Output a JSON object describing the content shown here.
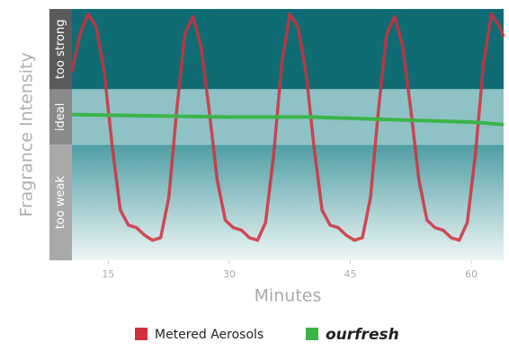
{
  "chart_data": {
    "type": "line",
    "ylabel": "Fragrance Intensity",
    "xlabel": "Minutes",
    "xlim": [
      10.5,
      64
    ],
    "ylim": [
      0,
      100
    ],
    "xticks": [
      15,
      30,
      45,
      60
    ],
    "bands": [
      {
        "label": "too strong",
        "from": 68,
        "to": 100,
        "color": "#0f6c74",
        "strip": "#5a5a5a"
      },
      {
        "label": "ideal",
        "from": 46,
        "to": 68,
        "color": "#8ec2c5",
        "strip": "#8a8a8a"
      },
      {
        "label": "too weak",
        "from": 0,
        "to": 46,
        "color": "#4f9ea4",
        "strip": "#a9a9a9"
      }
    ],
    "series": [
      {
        "name": "Metered Aerosols",
        "color": "#d12f3c",
        "x": [
          10.5,
          11.5,
          12.5,
          13.5,
          14.5,
          15.5,
          16.5,
          17.5,
          18.5,
          19.5,
          20.5,
          21.5,
          22.5,
          23.5,
          24.5,
          25.5,
          26.5,
          27.5,
          28.5,
          29.5,
          30.5,
          31.5,
          32.5,
          33.5,
          34.5,
          35.5,
          36.5,
          37.5,
          38.5,
          39.5,
          40.5,
          41.5,
          42.5,
          43.5,
          44.5,
          45.5,
          46.5,
          47.5,
          48.5,
          49.5,
          50.5,
          51.5,
          52.5,
          53.5,
          54.5,
          55.5,
          56.5,
          57.5,
          58.5,
          59.5,
          60.5,
          61.5,
          62.5,
          63.5,
          64
        ],
        "values": [
          75,
          90,
          98,
          93,
          75,
          45,
          20,
          14,
          13,
          10,
          8,
          9,
          25,
          60,
          90,
          97,
          85,
          60,
          32,
          16,
          13,
          12,
          9,
          8,
          15,
          42,
          78,
          98,
          93,
          75,
          45,
          20,
          14,
          13,
          10,
          8,
          9,
          25,
          60,
          90,
          97,
          85,
          60,
          32,
          16,
          13,
          12,
          9,
          8,
          15,
          42,
          78,
          98,
          93,
          89
        ]
      },
      {
        "name": "ourfresh",
        "color": "#3cb44a",
        "x": [
          10.5,
          20,
          30,
          40,
          50,
          60,
          64
        ],
        "values": [
          58,
          57.5,
          57,
          57,
          56,
          55,
          54
        ]
      }
    ]
  }
}
